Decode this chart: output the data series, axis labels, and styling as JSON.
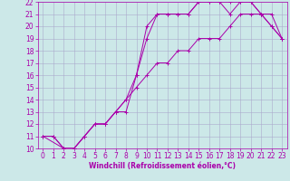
{
  "xlabel": "Windchill (Refroidissement éolien,°C)",
  "xlim": [
    -0.5,
    23.5
  ],
  "ylim": [
    10,
    22
  ],
  "xticks": [
    0,
    1,
    2,
    3,
    4,
    5,
    6,
    7,
    8,
    9,
    10,
    11,
    12,
    13,
    14,
    15,
    16,
    17,
    18,
    19,
    20,
    21,
    22,
    23
  ],
  "yticks": [
    10,
    11,
    12,
    13,
    14,
    15,
    16,
    17,
    18,
    19,
    20,
    21,
    22
  ],
  "bg_color": "#cce8e8",
  "grid_color": "#aaaacc",
  "line_color": "#aa00aa",
  "line1_x": [
    0,
    1,
    2,
    3,
    4,
    5,
    6,
    7,
    8,
    9,
    10,
    11,
    12,
    13,
    14,
    15,
    16,
    17,
    18,
    19,
    20,
    21,
    22,
    23
  ],
  "line1_y": [
    11,
    11,
    10,
    10,
    11,
    12,
    12,
    13,
    13,
    16,
    20,
    21,
    21,
    21,
    21,
    22,
    22,
    22,
    22,
    22,
    22,
    21,
    20,
    19
  ],
  "line2_x": [
    0,
    2,
    3,
    4,
    5,
    6,
    7,
    8,
    9,
    10,
    11,
    12,
    13,
    14,
    15,
    16,
    17,
    18,
    19,
    20,
    21,
    22,
    23
  ],
  "line2_y": [
    11,
    10,
    10,
    11,
    12,
    12,
    13,
    14,
    16,
    19,
    21,
    21,
    21,
    21,
    22,
    22,
    22,
    21,
    22,
    22,
    21,
    20,
    19
  ],
  "line3_x": [
    0,
    1,
    2,
    3,
    4,
    5,
    6,
    7,
    8,
    9,
    10,
    11,
    12,
    13,
    14,
    15,
    16,
    17,
    18,
    19,
    20,
    21,
    22,
    23
  ],
  "line3_y": [
    11,
    11,
    10,
    10,
    11,
    12,
    12,
    13,
    14,
    15,
    16,
    17,
    17,
    18,
    18,
    19,
    19,
    19,
    20,
    21,
    21,
    21,
    21,
    19
  ],
  "tick_fontsize": 5.5,
  "xlabel_fontsize": 5.5,
  "marker_size": 2.5,
  "linewidth": 0.7
}
